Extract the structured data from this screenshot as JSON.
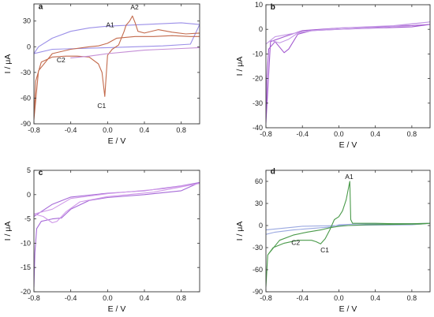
{
  "chart_data": [
    {
      "panel": "a",
      "type": "line",
      "xlabel": "E / V",
      "ylabel": "I / μA",
      "xlim": [
        -0.8,
        1.0
      ],
      "ylim": [
        -90,
        50
      ],
      "xticks": [
        -0.8,
        -0.4,
        0.0,
        0.4,
        0.8
      ],
      "xtick_labels": [
        "-0.8",
        "-0.4",
        "0.0",
        "0.4",
        "0.8"
      ],
      "yticks": [
        -90,
        -60,
        -30,
        0,
        30
      ],
      "ytick_labels": [
        "-90",
        "-60",
        "-30",
        "0",
        "30"
      ],
      "series": [
        {
          "color": "#9b8fe8",
          "x": [
            -0.8,
            -0.75,
            -0.6,
            -0.4,
            -0.2,
            0.0,
            0.4,
            0.8,
            1.0,
            0.9,
            0.6,
            0.3,
            0.0,
            -0.3,
            -0.6,
            -0.8
          ],
          "y": [
            -8,
            0,
            10,
            18,
            22,
            24,
            26,
            28,
            26,
            3,
            1,
            0,
            -1,
            -2,
            -3,
            -8
          ]
        },
        {
          "color": "#c36a4c",
          "x": [
            -0.8,
            -0.78,
            -0.72,
            -0.6,
            -0.45,
            -0.33,
            -0.2,
            -0.1,
            -0.06,
            -0.03,
            0.0,
            0.05,
            0.12,
            0.18,
            0.2,
            0.24,
            0.27,
            0.3,
            0.33,
            0.4,
            0.55,
            0.7,
            0.85,
            1.0,
            1.0,
            0.9,
            0.7,
            0.5,
            0.3,
            0.1,
            0.0,
            -0.1,
            -0.2,
            -0.4,
            -0.6,
            -0.75,
            -0.8
          ],
          "y": [
            -85,
            -40,
            -18,
            -12,
            -11,
            -11,
            -12,
            -20,
            -30,
            -58,
            -10,
            -3,
            2,
            18,
            25,
            30,
            36,
            28,
            18,
            16,
            20,
            17,
            15,
            16,
            12,
            12,
            13,
            12,
            12,
            10,
            4,
            1,
            0,
            -3,
            -8,
            -28,
            -85
          ]
        },
        {
          "color": "#c58fd6",
          "x": [
            -0.4,
            -0.2,
            0.0,
            0.2,
            0.4,
            0.6,
            0.8,
            1.0
          ],
          "y": [
            -13,
            -11,
            -8,
            -6,
            -4,
            -3,
            -2,
            -1
          ]
        }
      ],
      "annotations": [
        "a",
        "A1",
        "A2",
        "C1",
        "C2"
      ]
    },
    {
      "panel": "b",
      "type": "line",
      "xlabel": "E / V",
      "ylabel": "I / μA",
      "xlim": [
        -0.8,
        1.0
      ],
      "ylim": [
        -40,
        10
      ],
      "xticks": [
        -0.8,
        -0.4,
        0.0,
        0.4,
        0.8
      ],
      "xtick_labels": [
        "-0.8",
        "-0.4",
        "0.0",
        "0.4",
        "0.8"
      ],
      "yticks": [
        -40,
        -30,
        -20,
        -10,
        0,
        10
      ],
      "ytick_labels": [
        "-40",
        "-30",
        "-20",
        "-10",
        "0",
        "10"
      ],
      "series": [
        {
          "color": "#a35ad0",
          "x": [
            -0.8,
            -0.79,
            -0.77,
            -0.7,
            -0.6,
            -0.55,
            -0.45,
            -0.3,
            0.0,
            0.4,
            0.8,
            1.0,
            0.8,
            0.4,
            0.0,
            -0.4,
            -0.6,
            -0.75,
            -0.8
          ],
          "y": [
            -38,
            -20,
            -8,
            -5,
            -9.5,
            -8,
            -2,
            -0.5,
            0,
            0.5,
            1,
            2,
            1.5,
            1,
            0.5,
            -0.5,
            -3,
            -5,
            -38
          ]
        },
        {
          "color": "#c59ae6",
          "x": [
            -0.8,
            -0.75,
            -0.65,
            -0.55,
            -0.45,
            -0.3,
            0.0,
            0.5,
            1.0,
            0.6,
            0.0,
            -0.4,
            -0.7,
            -0.8
          ],
          "y": [
            -6,
            -4.5,
            -5.5,
            -4,
            -1.5,
            -0.5,
            0,
            0.8,
            3,
            1.5,
            0.5,
            -1,
            -3,
            -6
          ]
        }
      ],
      "annotations": [
        "b"
      ]
    },
    {
      "panel": "c",
      "type": "line",
      "xlabel": "E / V",
      "ylabel": "I / μA",
      "xlim": [
        -0.8,
        1.0
      ],
      "ylim": [
        -20,
        5
      ],
      "xticks": [
        -0.8,
        -0.4,
        0.0,
        0.4,
        0.8
      ],
      "xtick_labels": [
        "-0.8",
        "-0.4",
        "0.0",
        "0.4",
        "0.8"
      ],
      "yticks": [
        -20,
        -15,
        -10,
        -5,
        0,
        5
      ],
      "ytick_labels": [
        "-20",
        "-15",
        "-10",
        "-5",
        "0",
        "5"
      ],
      "series": [
        {
          "color": "#a66ad8",
          "x": [
            -0.8,
            -0.79,
            -0.77,
            -0.72,
            -0.6,
            -0.5,
            -0.4,
            -0.2,
            0.0,
            0.4,
            0.8,
            1.0,
            0.8,
            0.4,
            0.0,
            -0.4,
            -0.6,
            -0.8
          ],
          "y": [
            -19,
            -12,
            -7,
            -5.5,
            -5,
            -4.8,
            -3,
            -1.2,
            -0.6,
            0,
            0.8,
            2.5,
            1.8,
            0.8,
            0.3,
            -0.5,
            -2,
            -4.5
          ]
        },
        {
          "color": "#d09ae8",
          "x": [
            -0.8,
            -0.7,
            -0.6,
            -0.55,
            -0.45,
            -0.3,
            0.0,
            0.5,
            1.0,
            0.6,
            0.0,
            -0.4,
            -0.6,
            -0.8
          ],
          "y": [
            -4,
            -4.5,
            -5.8,
            -5.5,
            -3.5,
            -1.5,
            -0.4,
            0.5,
            2.3,
            1.2,
            0.2,
            -0.8,
            -3,
            -4
          ]
        }
      ],
      "annotations": [
        "c"
      ]
    },
    {
      "panel": "d",
      "type": "line",
      "xlabel": "E / V",
      "ylabel": "I / μA",
      "xlim": [
        -0.8,
        1.0
      ],
      "ylim": [
        -90,
        75
      ],
      "xticks": [
        -0.8,
        -0.4,
        0.0,
        0.4,
        0.8
      ],
      "xtick_labels": [
        "-0.8",
        "-0.4",
        "0.0",
        "0.4",
        "0.8"
      ],
      "yticks": [
        -90,
        -60,
        -30,
        0,
        30,
        60
      ],
      "ytick_labels": [
        "-90",
        "-60",
        "-30",
        "0",
        "30",
        "60"
      ],
      "series": [
        {
          "color": "#9aa8e0",
          "x": [
            -0.8,
            -0.7,
            -0.5,
            -0.3,
            -0.1,
            0.0,
            0.2,
            0.4,
            0.6,
            0.8,
            1.0,
            0.8,
            0.4,
            0.0,
            -0.4,
            -0.8
          ],
          "y": [
            -12,
            -9,
            -6,
            -4,
            -2,
            1,
            2,
            2,
            2.5,
            2.5,
            3,
            1,
            0.5,
            0,
            -1,
            -6
          ]
        },
        {
          "color": "#4a9a4a",
          "x": [
            -0.8,
            -0.78,
            -0.72,
            -0.6,
            -0.45,
            -0.3,
            -0.25,
            -0.2,
            -0.15,
            -0.1,
            -0.05,
            0.0,
            0.04,
            0.08,
            0.12,
            0.13,
            0.15,
            0.2,
            0.4,
            0.6,
            0.8,
            1.0,
            0.9,
            0.6,
            0.3,
            0.1,
            0.0,
            -0.1,
            -0.2,
            -0.35,
            -0.5,
            -0.65,
            -0.78,
            -0.8
          ],
          "y": [
            -83,
            -40,
            -30,
            -24,
            -20,
            -20,
            -22,
            -25,
            -18,
            -6,
            8,
            12,
            20,
            35,
            60,
            8,
            3,
            3,
            3,
            2.5,
            2.5,
            3,
            2,
            1.5,
            1,
            0,
            -1,
            -3,
            -6,
            -9,
            -13,
            -20,
            -40,
            -83
          ]
        }
      ],
      "annotations": [
        "d",
        "A1",
        "C1",
        "C2"
      ]
    }
  ],
  "labels": {
    "a": {
      "panel": "a",
      "A1": "A1",
      "A2": "A2",
      "C1": "C1",
      "C2": "C2"
    },
    "b": {
      "panel": "b"
    },
    "c": {
      "panel": "c"
    },
    "d": {
      "panel": "d",
      "A1": "A1",
      "C1": "C1",
      "C2": "C2"
    }
  }
}
